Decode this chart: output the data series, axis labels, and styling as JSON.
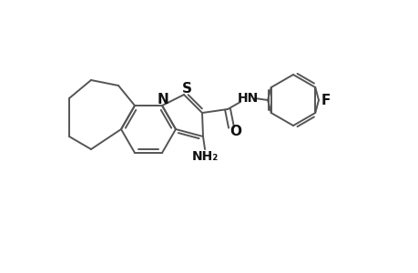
{
  "bg_color": "#ffffff",
  "line_color": "#555555",
  "lw": 1.4,
  "figsize": [
    4.6,
    3.0
  ],
  "dpi": 100,
  "atoms": {
    "N_label": "N",
    "S_label": "S",
    "HN_label": "HN",
    "O_label": "O",
    "F_label": "F",
    "NH2_label": "NH₂"
  }
}
